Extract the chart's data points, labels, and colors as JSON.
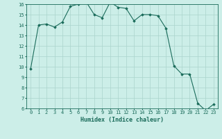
{
  "x": [
    0,
    1,
    2,
    3,
    4,
    5,
    6,
    7,
    8,
    9,
    10,
    11,
    12,
    13,
    14,
    15,
    16,
    17,
    18,
    19,
    20,
    21,
    22,
    23
  ],
  "y": [
    9.8,
    14.0,
    14.1,
    13.8,
    14.3,
    15.8,
    16.0,
    16.2,
    15.0,
    14.7,
    16.2,
    15.7,
    15.6,
    14.4,
    15.0,
    15.0,
    14.9,
    13.7,
    10.1,
    9.3,
    9.3,
    6.5,
    5.8,
    6.4
  ],
  "xlabel": "Humidex (Indice chaleur)",
  "ylim": [
    6,
    16
  ],
  "xlim": [
    -0.5,
    23.5
  ],
  "yticks": [
    6,
    7,
    8,
    9,
    10,
    11,
    12,
    13,
    14,
    15,
    16
  ],
  "xticks": [
    0,
    1,
    2,
    3,
    4,
    5,
    6,
    7,
    8,
    9,
    10,
    11,
    12,
    13,
    14,
    15,
    16,
    17,
    18,
    19,
    20,
    21,
    22,
    23
  ],
  "line_color": "#1a6b5a",
  "marker": "D",
  "marker_size": 1.8,
  "bg_color": "#cceee8",
  "grid_color": "#aad4cc",
  "tick_label_color": "#1a6b5a",
  "xlabel_color": "#1a6b5a",
  "font": "monospace",
  "tick_fontsize": 5.0,
  "xlabel_fontsize": 6.0
}
